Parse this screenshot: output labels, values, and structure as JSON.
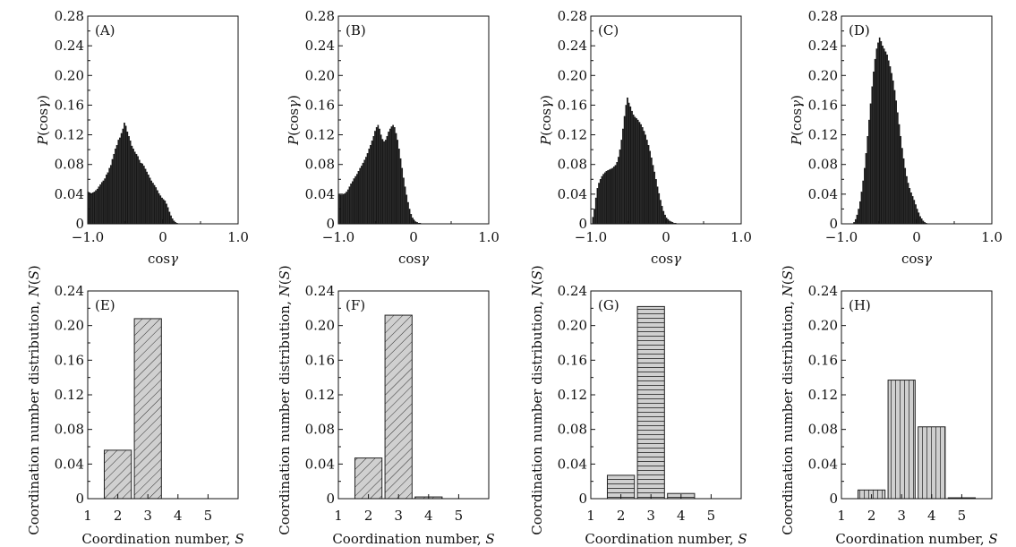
{
  "chart_data": [
    {
      "type": "bar",
      "panel": "(A)",
      "title": "(A)",
      "xlabel": "cosγ",
      "ylabel": "P(cosγ)",
      "xlim": [
        -1.0,
        1.0
      ],
      "ylim": [
        0,
        0.28
      ],
      "xticks": [
        "−1.0",
        "0",
        "1.0"
      ],
      "yticks": [
        "0",
        "0.04",
        "0.08",
        "0.12",
        "0.16",
        "0.20",
        "0.24",
        "0.28"
      ],
      "x": [
        -1.0,
        -0.98,
        -0.96,
        -0.94,
        -0.92,
        -0.9,
        -0.88,
        -0.86,
        -0.84,
        -0.82,
        -0.8,
        -0.78,
        -0.76,
        -0.74,
        -0.72,
        -0.7,
        -0.68,
        -0.66,
        -0.64,
        -0.62,
        -0.6,
        -0.58,
        -0.56,
        -0.54,
        -0.52,
        -0.5,
        -0.48,
        -0.46,
        -0.44,
        -0.42,
        -0.4,
        -0.38,
        -0.36,
        -0.34,
        -0.32,
        -0.3,
        -0.28,
        -0.26,
        -0.24,
        -0.22,
        -0.2,
        -0.18,
        -0.16,
        -0.14,
        -0.12,
        -0.1,
        -0.08,
        -0.06,
        -0.04,
        -0.02,
        0.0,
        0.02,
        0.04,
        0.06,
        0.08,
        0.1,
        0.12,
        0.14,
        0.16,
        0.18,
        0.2,
        0.22,
        0.24
      ],
      "values": [
        0.043,
        0.042,
        0.041,
        0.042,
        0.043,
        0.045,
        0.047,
        0.05,
        0.053,
        0.056,
        0.058,
        0.061,
        0.066,
        0.069,
        0.075,
        0.079,
        0.087,
        0.094,
        0.101,
        0.106,
        0.113,
        0.116,
        0.122,
        0.128,
        0.136,
        0.132,
        0.124,
        0.118,
        0.112,
        0.105,
        0.101,
        0.097,
        0.094,
        0.091,
        0.086,
        0.082,
        0.081,
        0.078,
        0.074,
        0.07,
        0.066,
        0.062,
        0.058,
        0.055,
        0.052,
        0.049,
        0.045,
        0.041,
        0.038,
        0.035,
        0.033,
        0.031,
        0.027,
        0.022,
        0.016,
        0.011,
        0.007,
        0.004,
        0.002,
        0.001,
        0.0,
        0.0,
        0.0
      ]
    },
    {
      "type": "bar",
      "panel": "(B)",
      "title": "(B)",
      "xlabel": "cosγ",
      "ylabel": "P(cosγ)",
      "xlim": [
        -1.0,
        1.0
      ],
      "ylim": [
        0,
        0.28
      ],
      "xticks": [
        "−1.0",
        "0",
        "1.0"
      ],
      "yticks": [
        "0",
        "0.04",
        "0.08",
        "0.12",
        "0.16",
        "0.20",
        "0.24",
        "0.28"
      ],
      "x": [
        -1.0,
        -0.98,
        -0.96,
        -0.94,
        -0.92,
        -0.9,
        -0.88,
        -0.86,
        -0.84,
        -0.82,
        -0.8,
        -0.78,
        -0.76,
        -0.74,
        -0.72,
        -0.7,
        -0.68,
        -0.66,
        -0.64,
        -0.62,
        -0.6,
        -0.58,
        -0.56,
        -0.54,
        -0.52,
        -0.5,
        -0.48,
        -0.46,
        -0.44,
        -0.42,
        -0.4,
        -0.38,
        -0.36,
        -0.34,
        -0.32,
        -0.3,
        -0.28,
        -0.26,
        -0.24,
        -0.22,
        -0.2,
        -0.18,
        -0.16,
        -0.14,
        -0.12,
        -0.1,
        -0.08,
        -0.06,
        -0.04,
        -0.02,
        0.0,
        0.02,
        0.04,
        0.06,
        0.08,
        0.1,
        0.12,
        0.14,
        0.16,
        0.18,
        0.2
      ],
      "values": [
        0.04,
        0.039,
        0.039,
        0.04,
        0.041,
        0.043,
        0.046,
        0.05,
        0.054,
        0.057,
        0.061,
        0.064,
        0.067,
        0.071,
        0.075,
        0.078,
        0.082,
        0.086,
        0.09,
        0.095,
        0.101,
        0.106,
        0.112,
        0.118,
        0.125,
        0.13,
        0.133,
        0.128,
        0.12,
        0.114,
        0.111,
        0.113,
        0.118,
        0.124,
        0.128,
        0.131,
        0.133,
        0.13,
        0.122,
        0.113,
        0.101,
        0.088,
        0.075,
        0.062,
        0.05,
        0.039,
        0.029,
        0.02,
        0.013,
        0.008,
        0.005,
        0.003,
        0.002,
        0.001,
        0.001,
        0.0,
        0.0,
        0.0,
        0.0,
        0.0,
        0.0
      ]
    },
    {
      "type": "bar",
      "panel": "(C)",
      "title": "(C)",
      "xlabel": "cosγ",
      "ylabel": "P(cosγ)",
      "xlim": [
        -1.0,
        1.0
      ],
      "ylim": [
        0,
        0.28
      ],
      "xticks": [
        "−1.0",
        "0",
        "1.0"
      ],
      "yticks": [
        "0",
        "0.04",
        "0.08",
        "0.12",
        "0.16",
        "0.20",
        "0.24",
        "0.28"
      ],
      "x": [
        -1.0,
        -0.98,
        -0.96,
        -0.94,
        -0.92,
        -0.9,
        -0.88,
        -0.86,
        -0.84,
        -0.82,
        -0.8,
        -0.78,
        -0.76,
        -0.74,
        -0.72,
        -0.7,
        -0.68,
        -0.66,
        -0.64,
        -0.62,
        -0.6,
        -0.58,
        -0.56,
        -0.54,
        -0.52,
        -0.5,
        -0.48,
        -0.46,
        -0.44,
        -0.42,
        -0.4,
        -0.38,
        -0.36,
        -0.34,
        -0.32,
        -0.3,
        -0.28,
        -0.26,
        -0.24,
        -0.22,
        -0.2,
        -0.18,
        -0.16,
        -0.14,
        -0.12,
        -0.1,
        -0.08,
        -0.06,
        -0.04,
        -0.02,
        0.0,
        0.02,
        0.04,
        0.06,
        0.08,
        0.1,
        0.12,
        0.14,
        0.16,
        0.18,
        0.2
      ],
      "values": [
        0.0,
        0.009,
        0.02,
        0.035,
        0.048,
        0.055,
        0.06,
        0.064,
        0.067,
        0.069,
        0.071,
        0.072,
        0.073,
        0.074,
        0.075,
        0.077,
        0.079,
        0.083,
        0.09,
        0.1,
        0.113,
        0.128,
        0.145,
        0.16,
        0.17,
        0.163,
        0.158,
        0.152,
        0.147,
        0.144,
        0.142,
        0.14,
        0.137,
        0.134,
        0.13,
        0.125,
        0.12,
        0.113,
        0.106,
        0.098,
        0.089,
        0.079,
        0.07,
        0.06,
        0.05,
        0.041,
        0.032,
        0.024,
        0.017,
        0.012,
        0.008,
        0.006,
        0.004,
        0.003,
        0.002,
        0.001,
        0.001,
        0.0,
        0.0,
        0.0,
        0.0
      ]
    },
    {
      "type": "bar",
      "panel": "(D)",
      "title": "(D)",
      "xlabel": "cosγ",
      "ylabel": "P(cosγ)",
      "xlim": [
        -1.0,
        1.0
      ],
      "ylim": [
        0,
        0.28
      ],
      "xticks": [
        "−1.0",
        "0",
        "1.0"
      ],
      "yticks": [
        "0",
        "0.04",
        "0.08",
        "0.12",
        "0.16",
        "0.20",
        "0.24",
        "0.28"
      ],
      "x": [
        -0.84,
        -0.82,
        -0.8,
        -0.78,
        -0.76,
        -0.74,
        -0.72,
        -0.7,
        -0.68,
        -0.66,
        -0.64,
        -0.62,
        -0.6,
        -0.58,
        -0.56,
        -0.54,
        -0.52,
        -0.5,
        -0.48,
        -0.46,
        -0.44,
        -0.42,
        -0.4,
        -0.38,
        -0.36,
        -0.34,
        -0.32,
        -0.3,
        -0.28,
        -0.26,
        -0.24,
        -0.22,
        -0.2,
        -0.18,
        -0.16,
        -0.14,
        -0.12,
        -0.1,
        -0.08,
        -0.06,
        -0.04,
        -0.02,
        0.0,
        0.02,
        0.04,
        0.06,
        0.08,
        0.1,
        0.12,
        0.14,
        0.16
      ],
      "values": [
        0.002,
        0.006,
        0.012,
        0.02,
        0.03,
        0.043,
        0.058,
        0.075,
        0.095,
        0.118,
        0.14,
        0.162,
        0.185,
        0.205,
        0.222,
        0.236,
        0.244,
        0.251,
        0.246,
        0.24,
        0.236,
        0.232,
        0.228,
        0.22,
        0.212,
        0.203,
        0.193,
        0.18,
        0.166,
        0.15,
        0.134,
        0.118,
        0.102,
        0.088,
        0.075,
        0.064,
        0.055,
        0.048,
        0.042,
        0.037,
        0.032,
        0.026,
        0.02,
        0.015,
        0.01,
        0.007,
        0.004,
        0.002,
        0.001,
        0.0,
        0.0
      ]
    },
    {
      "type": "bar",
      "panel": "(E)",
      "title": "(E)",
      "xlabel": "Coordination number, S",
      "ylabel": "Coordination number distribution, N(S)",
      "xlim": [
        1,
        6
      ],
      "ylim": [
        0,
        0.24
      ],
      "xticks": [
        "1",
        "2",
        "3",
        "4",
        "5"
      ],
      "yticks": [
        "0",
        "0.04",
        "0.08",
        "0.12",
        "0.16",
        "0.20",
        "0.24"
      ],
      "categories": [
        "2",
        "3",
        "4",
        "5"
      ],
      "values": [
        0.056,
        0.208,
        0.0,
        0.0
      ],
      "hatch": "diagonal"
    },
    {
      "type": "bar",
      "panel": "(F)",
      "title": "(F)",
      "xlabel": "Coordination number, S",
      "ylabel": "Coordination number distribution, N(S)",
      "xlim": [
        1,
        6
      ],
      "ylim": [
        0,
        0.24
      ],
      "xticks": [
        "1",
        "2",
        "3",
        "4",
        "5"
      ],
      "yticks": [
        "0",
        "0.04",
        "0.08",
        "0.12",
        "0.16",
        "0.20",
        "0.24"
      ],
      "categories": [
        "2",
        "3",
        "4",
        "5"
      ],
      "values": [
        0.047,
        0.212,
        0.002,
        0.0
      ],
      "hatch": "diagonal"
    },
    {
      "type": "bar",
      "panel": "(G)",
      "title": "(G)",
      "xlabel": "Coordination number, S",
      "ylabel": "Coordination number distribution, N(S)",
      "xlim": [
        1,
        6
      ],
      "ylim": [
        0,
        0.24
      ],
      "xticks": [
        "1",
        "2",
        "3",
        "4",
        "5"
      ],
      "yticks": [
        "0",
        "0.04",
        "0.08",
        "0.12",
        "0.16",
        "0.20",
        "0.24"
      ],
      "categories": [
        "2",
        "3",
        "4",
        "5"
      ],
      "values": [
        0.027,
        0.222,
        0.006,
        0.0
      ],
      "hatch": "horizontal"
    },
    {
      "type": "bar",
      "panel": "(H)",
      "title": "(H)",
      "xlabel": "Coordination number, S",
      "ylabel": "Coordination number distribution, N(S)",
      "xlim": [
        1,
        6
      ],
      "ylim": [
        0,
        0.24
      ],
      "xticks": [
        "1",
        "2",
        "3",
        "4",
        "5"
      ],
      "yticks": [
        "0",
        "0.04",
        "0.08",
        "0.12",
        "0.16",
        "0.20",
        "0.24"
      ],
      "categories": [
        "2",
        "3",
        "4",
        "5"
      ],
      "values": [
        0.01,
        0.137,
        0.083,
        0.001
      ],
      "hatch": "vertical"
    }
  ]
}
